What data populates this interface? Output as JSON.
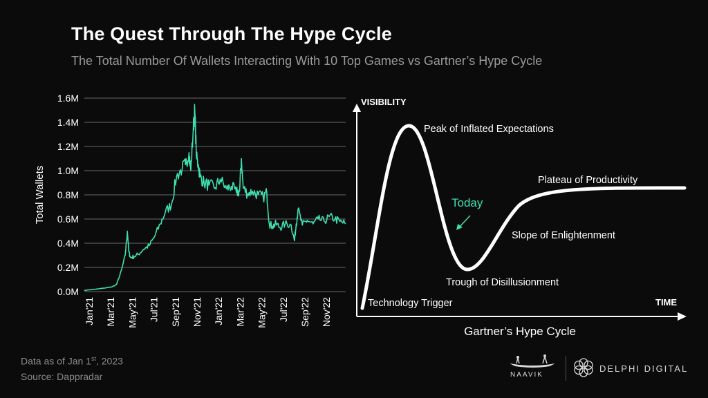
{
  "header": {
    "title": "The Quest Through The Hype Cycle",
    "subtitle": "The Total Number Of Wallets Interacting With 10 Top Games vs Gartner’s Hype Cycle"
  },
  "colors": {
    "accent": "#3ee0b0",
    "background": "#0b0b0b",
    "grid": "#6a6a6a"
  },
  "chart_data": [
    {
      "type": "line",
      "title": "",
      "xlabel": "",
      "ylabel": "Total Wallets",
      "ylim": [
        0,
        1600000
      ],
      "yticks": [
        "0.0M",
        "0.2M",
        "0.4M",
        "0.6M",
        "0.8M",
        "1.0M",
        "1.2M",
        "1.4M",
        "1.6M"
      ],
      "xticks": [
        "Jan'21",
        "Mar'21",
        "May'21",
        "Jul'21",
        "Sep'21",
        "Nov'21",
        "Jan'22",
        "Mar'22",
        "May'22",
        "Jul'22",
        "Sep'22",
        "Nov'22"
      ],
      "grid": true,
      "series": [
        {
          "color": "#3ee0b0",
          "x": [
            "2021-01-01",
            "2021-02-01",
            "2021-03-01",
            "2021-03-20",
            "2021-04-01",
            "2021-04-15",
            "2021-04-25",
            "2021-05-01",
            "2021-05-05",
            "2021-05-10",
            "2021-05-20",
            "2021-06-01",
            "2021-06-15",
            "2021-07-01",
            "2021-07-15",
            "2021-08-01",
            "2021-08-15",
            "2021-09-01",
            "2021-09-15",
            "2021-10-01",
            "2021-10-10",
            "2021-10-20",
            "2021-10-25",
            "2021-11-01",
            "2021-11-05",
            "2021-11-10",
            "2021-11-15",
            "2021-11-20",
            "2021-12-01",
            "2021-12-15",
            "2022-01-01",
            "2022-01-15",
            "2022-02-01",
            "2022-02-15",
            "2022-03-01",
            "2022-03-10",
            "2022-03-15",
            "2022-03-20",
            "2022-04-01",
            "2022-04-15",
            "2022-05-01",
            "2022-05-15",
            "2022-05-25",
            "2022-06-01",
            "2022-06-10",
            "2022-06-20",
            "2022-07-01",
            "2022-07-15",
            "2022-08-01",
            "2022-08-10",
            "2022-08-15",
            "2022-08-20",
            "2022-09-01",
            "2022-09-15",
            "2022-10-01",
            "2022-10-15",
            "2022-11-01",
            "2022-11-15",
            "2022-12-01",
            "2022-12-15",
            "2022-12-31"
          ],
          "values": [
            10000,
            20000,
            30000,
            40000,
            60000,
            180000,
            300000,
            500000,
            330000,
            280000,
            290000,
            310000,
            350000,
            380000,
            450000,
            560000,
            660000,
            720000,
            950000,
            1020000,
            1050000,
            1150000,
            1000000,
            1350000,
            1500000,
            1100000,
            1050000,
            950000,
            900000,
            880000,
            860000,
            930000,
            850000,
            870000,
            820000,
            830000,
            1100000,
            860000,
            810000,
            830000,
            800000,
            780000,
            820000,
            560000,
            540000,
            560000,
            530000,
            560000,
            550000,
            420000,
            560000,
            680000,
            550000,
            590000,
            560000,
            600000,
            580000,
            620000,
            600000,
            580000,
            560000
          ]
        }
      ]
    },
    {
      "type": "line",
      "title": "",
      "xlabel": "TIME",
      "ylabel": "VISIBILITY",
      "caption": "Gartner’s Hype Cycle",
      "annotations": [
        {
          "label": "Peak of Inflated Expectations"
        },
        {
          "label": "Plateau of Productivity"
        },
        {
          "label": "Today",
          "color": "#3ee0b0"
        },
        {
          "label": "Slope of Enlightenment"
        },
        {
          "label": "Trough of Disillusionment"
        },
        {
          "label": "Technology Trigger"
        }
      ]
    }
  ],
  "footer": {
    "date_note": "Data as of Jan 1",
    "date_sup": "st",
    "date_year": ", 2023",
    "source": "Source: Dappradar"
  },
  "logos": {
    "naavik": "NAAVIK",
    "delphi": "DELPHI DIGITAL"
  }
}
